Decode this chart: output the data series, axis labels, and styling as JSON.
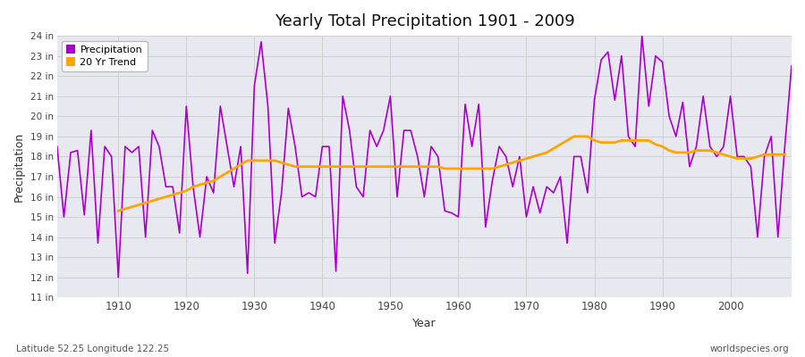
{
  "title": "Yearly Total Precipitation 1901 - 2009",
  "xlabel": "Year",
  "ylabel": "Precipitation",
  "bottom_left": "Latitude 52.25 Longitude 122.25",
  "bottom_right": "worldspecies.org",
  "precip_color": "#aa00cc",
  "trend_color": "#FFA500",
  "fig_bg_color": "#ffffff",
  "plot_bg_color": "#e8e8f0",
  "ylim_min": 11,
  "ylim_max": 24,
  "xlim_min": 1901,
  "xlim_max": 2009,
  "ytick_vals": [
    11,
    12,
    13,
    14,
    15,
    16,
    17,
    18,
    19,
    20,
    21,
    22,
    23,
    24
  ],
  "ytick_labels": [
    "11 in",
    "12 in",
    "13 in",
    "14 in",
    "15 in",
    "16 in",
    "17 in",
    "18 in",
    "19 in",
    "20 in",
    "21 in",
    "22 in",
    "23 in",
    "24 in"
  ],
  "xtick_vals": [
    1910,
    1920,
    1930,
    1940,
    1950,
    1960,
    1970,
    1980,
    1990,
    2000
  ],
  "years": [
    1901,
    1902,
    1903,
    1904,
    1905,
    1906,
    1907,
    1908,
    1909,
    1910,
    1911,
    1912,
    1913,
    1914,
    1915,
    1916,
    1917,
    1918,
    1919,
    1920,
    1921,
    1922,
    1923,
    1924,
    1925,
    1926,
    1927,
    1928,
    1929,
    1930,
    1931,
    1932,
    1933,
    1934,
    1935,
    1936,
    1937,
    1938,
    1939,
    1940,
    1941,
    1942,
    1943,
    1944,
    1945,
    1946,
    1947,
    1948,
    1949,
    1950,
    1951,
    1952,
    1953,
    1954,
    1955,
    1956,
    1957,
    1958,
    1959,
    1960,
    1961,
    1962,
    1963,
    1964,
    1965,
    1966,
    1967,
    1968,
    1969,
    1970,
    1971,
    1972,
    1973,
    1974,
    1975,
    1976,
    1977,
    1978,
    1979,
    1980,
    1981,
    1982,
    1983,
    1984,
    1985,
    1986,
    1987,
    1988,
    1989,
    1990,
    1991,
    1992,
    1993,
    1994,
    1995,
    1996,
    1997,
    1998,
    1999,
    2000,
    2001,
    2002,
    2003,
    2004,
    2005,
    2006,
    2007,
    2008,
    2009
  ],
  "precip": [
    18.5,
    15.0,
    18.2,
    18.3,
    15.1,
    19.3,
    13.7,
    18.5,
    18.0,
    12.0,
    18.5,
    18.2,
    18.5,
    14.0,
    19.3,
    18.5,
    16.5,
    16.5,
    14.2,
    20.5,
    16.5,
    14.0,
    17.0,
    16.2,
    20.5,
    18.5,
    16.5,
    18.5,
    12.2,
    21.5,
    23.7,
    20.5,
    13.7,
    16.2,
    20.4,
    18.5,
    16.0,
    16.2,
    16.0,
    18.5,
    18.5,
    12.3,
    21.0,
    19.3,
    16.5,
    16.0,
    19.3,
    18.5,
    19.3,
    21.0,
    16.0,
    19.3,
    19.3,
    18.0,
    16.0,
    18.5,
    18.0,
    15.3,
    15.2,
    15.0,
    20.6,
    18.5,
    20.6,
    14.5,
    16.8,
    18.5,
    18.0,
    16.5,
    18.0,
    15.0,
    16.5,
    15.2,
    16.5,
    16.2,
    17.0,
    13.7,
    18.0,
    18.0,
    16.2,
    20.8,
    22.8,
    23.2,
    20.8,
    23.0,
    19.0,
    18.5,
    24.0,
    20.5,
    23.0,
    22.7,
    20.0,
    19.0,
    20.7,
    17.5,
    18.5,
    21.0,
    18.5,
    18.0,
    18.5,
    21.0,
    18.0,
    18.0,
    17.5,
    14.0,
    18.0,
    19.0,
    14.0,
    18.5,
    22.5
  ],
  "trend_start_year": 1910,
  "trend": [
    15.3,
    15.4,
    15.5,
    15.6,
    15.7,
    15.8,
    15.9,
    16.0,
    16.1,
    16.2,
    16.3,
    16.5,
    16.6,
    16.7,
    16.8,
    17.0,
    17.2,
    17.4,
    17.6,
    17.8,
    17.8,
    17.8,
    17.8,
    17.8,
    17.7,
    17.6,
    17.5,
    17.5,
    17.5,
    17.5,
    17.5,
    17.5,
    17.5,
    17.5,
    17.5,
    17.5,
    17.5,
    17.5,
    17.5,
    17.5,
    17.5,
    17.5,
    17.5,
    17.5,
    17.5,
    17.5,
    17.5,
    17.5,
    17.4,
    17.4,
    17.4,
    17.4,
    17.4,
    17.4,
    17.4,
    17.4,
    17.5,
    17.6,
    17.7,
    17.8,
    17.9,
    18.0,
    18.1,
    18.2,
    18.4,
    18.6,
    18.8,
    19.0,
    19.0,
    19.0,
    18.8,
    18.7,
    18.7,
    18.7,
    18.8,
    18.8,
    18.8,
    18.8,
    18.8,
    18.6,
    18.5,
    18.3,
    18.2,
    18.2,
    18.2,
    18.3,
    18.3,
    18.3,
    18.2,
    18.1,
    18.0,
    17.9,
    17.9,
    17.9,
    18.0,
    18.1,
    18.1,
    18.1,
    18.1
  ]
}
